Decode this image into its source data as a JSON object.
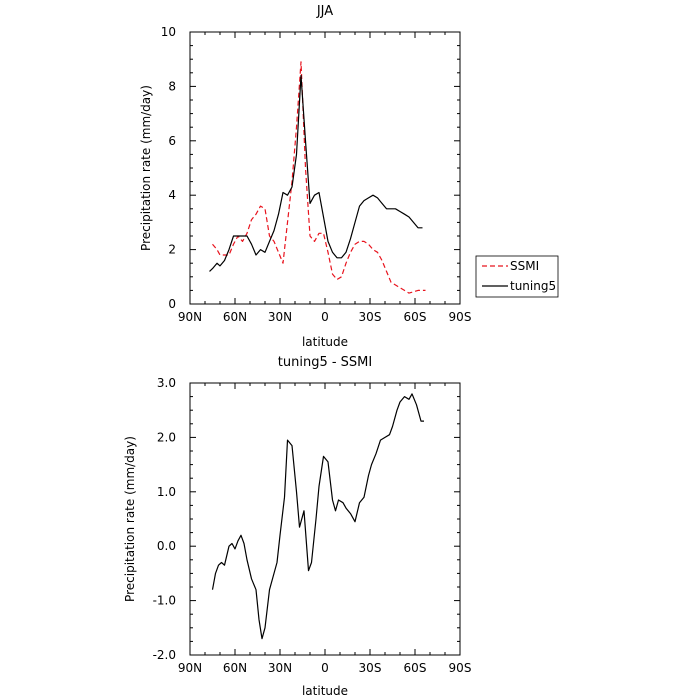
{
  "chart_data": [
    {
      "type": "line",
      "title": "JJA",
      "xlabel": "latitude",
      "ylabel": "Precipitation rate (mm/day)",
      "xlim": [
        90,
        -90
      ],
      "ylim": [
        0,
        10
      ],
      "x_ticks": [
        {
          "value": 90,
          "label": "90N"
        },
        {
          "value": 60,
          "label": "60N"
        },
        {
          "value": 30,
          "label": "30N"
        },
        {
          "value": 0,
          "label": "0"
        },
        {
          "value": -30,
          "label": "30S"
        },
        {
          "value": -60,
          "label": "60S"
        },
        {
          "value": -90,
          "label": "90S"
        }
      ],
      "y_ticks": [
        {
          "value": 0,
          "label": "0"
        },
        {
          "value": 2,
          "label": "2"
        },
        {
          "value": 4,
          "label": "4"
        },
        {
          "value": 6,
          "label": "6"
        },
        {
          "value": 8,
          "label": "8"
        },
        {
          "value": 10,
          "label": "10"
        }
      ],
      "legend_position": "right, outside plot, near bottom",
      "series": [
        {
          "name": "SSMI",
          "color": "#e8141e",
          "dash": true,
          "x": [
            75,
            72,
            70,
            67,
            64,
            61,
            58,
            55,
            52,
            49,
            46,
            43,
            40,
            37,
            34,
            31,
            28,
            25,
            22,
            19,
            16,
            13,
            10,
            7,
            4,
            1,
            -2,
            -5,
            -8,
            -11,
            -14,
            -17,
            -20,
            -23,
            -26,
            -29,
            -32,
            -35,
            -38,
            -41,
            -44,
            -47,
            -50,
            -53,
            -56,
            -59,
            -62,
            -65,
            -67
          ],
          "y": [
            2.2,
            2.0,
            1.8,
            1.8,
            1.8,
            2.2,
            2.5,
            2.3,
            2.6,
            3.1,
            3.3,
            3.6,
            3.5,
            2.5,
            2.3,
            1.9,
            1.5,
            3.0,
            4.5,
            6.5,
            8.9,
            5.0,
            2.5,
            2.3,
            2.6,
            2.6,
            1.9,
            1.1,
            0.9,
            1.0,
            1.5,
            1.9,
            2.2,
            2.3,
            2.3,
            2.2,
            2.0,
            1.9,
            1.6,
            1.2,
            0.8,
            0.7,
            0.6,
            0.5,
            0.4,
            0.45,
            0.5,
            0.5,
            0.5
          ]
        },
        {
          "name": "tuning5",
          "color": "#000000",
          "dash": false,
          "x": [
            77,
            75,
            72,
            70,
            67,
            64,
            61,
            58,
            55,
            52,
            49,
            46,
            43,
            40,
            37,
            34,
            31,
            28,
            25,
            22,
            19,
            16,
            13,
            10,
            7,
            4,
            1,
            -2,
            -5,
            -8,
            -11,
            -14,
            -17,
            -20,
            -23,
            -26,
            -29,
            -32,
            -35,
            -38,
            -41,
            -44,
            -47,
            -50,
            -53,
            -56,
            -59,
            -62,
            -65
          ],
          "y": [
            1.2,
            1.3,
            1.5,
            1.4,
            1.6,
            2.0,
            2.5,
            2.5,
            2.5,
            2.5,
            2.2,
            1.8,
            2.0,
            1.9,
            2.3,
            2.7,
            3.3,
            4.1,
            4.0,
            4.3,
            5.5,
            8.4,
            6.0,
            3.7,
            4.0,
            4.1,
            3.2,
            2.3,
            1.9,
            1.7,
            1.7,
            1.9,
            2.4,
            3.0,
            3.6,
            3.8,
            3.9,
            4.0,
            3.9,
            3.7,
            3.5,
            3.5,
            3.5,
            3.4,
            3.3,
            3.2,
            3.0,
            2.8,
            2.8
          ]
        }
      ]
    },
    {
      "type": "line",
      "title": "tuning5 - SSMI",
      "xlabel": "latitude",
      "ylabel": "Precipitation rate (mm/day)",
      "xlim": [
        90,
        -90
      ],
      "ylim": [
        -2,
        3
      ],
      "x_ticks": [
        {
          "value": 90,
          "label": "90N"
        },
        {
          "value": 60,
          "label": "60N"
        },
        {
          "value": 30,
          "label": "30N"
        },
        {
          "value": 0,
          "label": "0"
        },
        {
          "value": -30,
          "label": "30S"
        },
        {
          "value": -60,
          "label": "60S"
        },
        {
          "value": -90,
          "label": "90S"
        }
      ],
      "y_ticks": [
        {
          "value": -2,
          "label": "-2.0"
        },
        {
          "value": -1,
          "label": "-1.0"
        },
        {
          "value": 0,
          "label": "0.0"
        },
        {
          "value": 1,
          "label": "1.0"
        },
        {
          "value": 2,
          "label": "2.0"
        },
        {
          "value": 3,
          "label": "3.0"
        }
      ],
      "series": [
        {
          "color": "#000000",
          "dash": false,
          "x": [
            75,
            73,
            71,
            69,
            67,
            64,
            62,
            60,
            58,
            56,
            54,
            52,
            49,
            46,
            44,
            42,
            40,
            37,
            34,
            32,
            30,
            27,
            25,
            22,
            19,
            17,
            14,
            11,
            9,
            6,
            4,
            1,
            -2,
            -5,
            -7,
            -9,
            -12,
            -14,
            -17,
            -20,
            -23,
            -26,
            -29,
            -31,
            -34,
            -37,
            -40,
            -43,
            -45,
            -48,
            -50,
            -53,
            -56,
            -58,
            -61,
            -64,
            -66
          ],
          "y": [
            -0.8,
            -0.5,
            -0.35,
            -0.3,
            -0.35,
            0.0,
            0.05,
            -0.05,
            0.1,
            0.2,
            0.05,
            -0.25,
            -0.6,
            -0.8,
            -1.35,
            -1.7,
            -1.5,
            -0.8,
            -0.5,
            -0.3,
            0.2,
            0.9,
            1.95,
            1.85,
            1.0,
            0.35,
            0.65,
            -0.45,
            -0.3,
            0.5,
            1.1,
            1.65,
            1.55,
            0.85,
            0.65,
            0.85,
            0.8,
            0.7,
            0.6,
            0.45,
            0.8,
            0.9,
            1.3,
            1.5,
            1.7,
            1.95,
            2.0,
            2.05,
            2.2,
            2.5,
            2.65,
            2.75,
            2.7,
            2.8,
            2.6,
            2.3,
            2.3
          ]
        }
      ]
    }
  ]
}
